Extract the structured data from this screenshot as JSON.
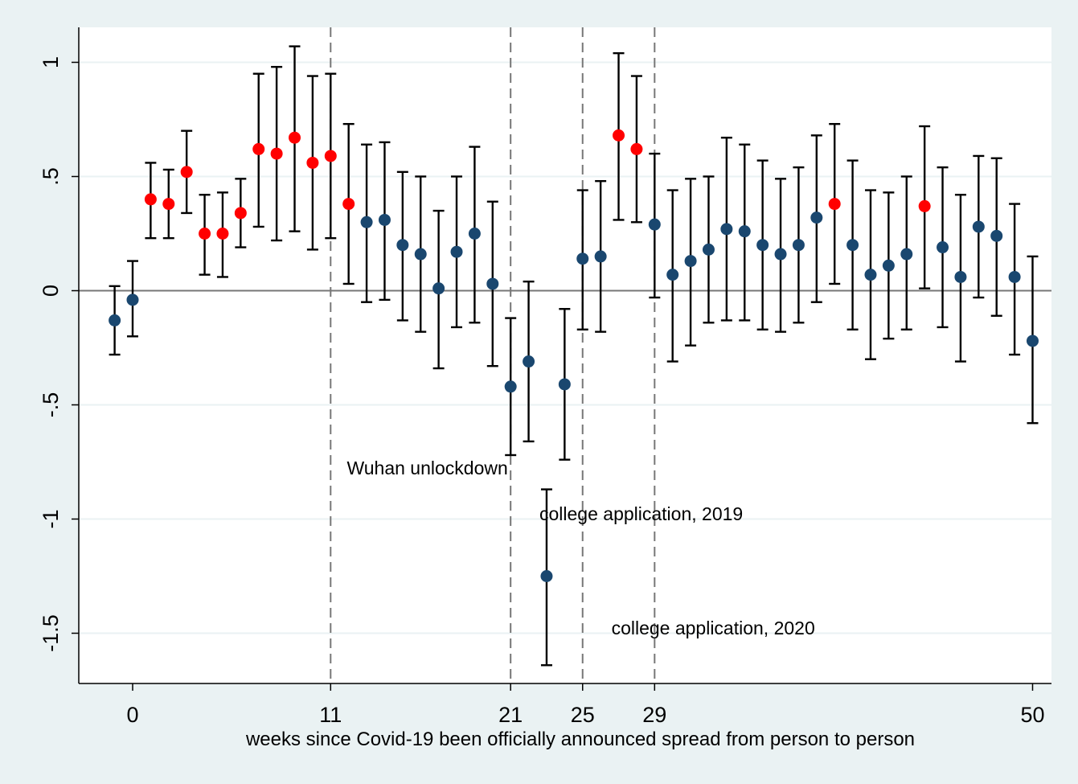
{
  "chart_data": {
    "type": "scatter",
    "xlabel": "weeks since Covid-19 been officially announced spread from person to person",
    "ylabel": "",
    "xlim": [
      -1,
      50
    ],
    "ylim": [
      -1.7,
      1.15
    ],
    "x_ticks": [
      0,
      11,
      21,
      25,
      29,
      50
    ],
    "y_ticks": [
      {
        "value": 1,
        "label": "1"
      },
      {
        "value": 0.5,
        "label": ".5"
      },
      {
        "value": 0,
        "label": "0"
      },
      {
        "value": -0.5,
        "label": "-.5"
      },
      {
        "value": -1,
        "label": "-1"
      },
      {
        "value": -1.5,
        "label": "-1.5"
      }
    ],
    "grid": true,
    "reference_lines": [
      0,
      11,
      21,
      25,
      29
    ],
    "annotations": [
      {
        "text": "Wuhan unlockdown",
        "x": 11.9,
        "y": -0.805
      },
      {
        "text": "college application, 2019",
        "x": 22.6,
        "y": -1.005
      },
      {
        "text": "college application, 2020",
        "x": 26.6,
        "y": -1.505
      }
    ],
    "colors": {
      "significant": "#ff0000",
      "insignificant": "#1a476f",
      "background": "#eaf2f3",
      "plot_background": "#ffffff"
    },
    "series": [
      {
        "x": -1,
        "y": -0.13,
        "low": -0.28,
        "high": 0.02,
        "significant": false
      },
      {
        "x": 0,
        "y": -0.04,
        "low": -0.2,
        "high": 0.13,
        "significant": false
      },
      {
        "x": 1,
        "y": 0.4,
        "low": 0.23,
        "high": 0.56,
        "significant": true
      },
      {
        "x": 2,
        "y": 0.38,
        "low": 0.23,
        "high": 0.53,
        "significant": true
      },
      {
        "x": 3,
        "y": 0.52,
        "low": 0.34,
        "high": 0.7,
        "significant": true
      },
      {
        "x": 4,
        "y": 0.25,
        "low": 0.07,
        "high": 0.42,
        "significant": true
      },
      {
        "x": 5,
        "y": 0.25,
        "low": 0.06,
        "high": 0.43,
        "significant": true
      },
      {
        "x": 6,
        "y": 0.34,
        "low": 0.19,
        "high": 0.49,
        "significant": true
      },
      {
        "x": 7,
        "y": 0.62,
        "low": 0.28,
        "high": 0.95,
        "significant": true
      },
      {
        "x": 8,
        "y": 0.6,
        "low": 0.22,
        "high": 0.98,
        "significant": true
      },
      {
        "x": 9,
        "y": 0.67,
        "low": 0.26,
        "high": 1.07,
        "significant": true
      },
      {
        "x": 10,
        "y": 0.56,
        "low": 0.18,
        "high": 0.94,
        "significant": true
      },
      {
        "x": 11,
        "y": 0.59,
        "low": 0.23,
        "high": 0.95,
        "significant": true
      },
      {
        "x": 12,
        "y": 0.38,
        "low": 0.03,
        "high": 0.73,
        "significant": true
      },
      {
        "x": 13,
        "y": 0.3,
        "low": -0.05,
        "high": 0.64,
        "significant": false
      },
      {
        "x": 14,
        "y": 0.31,
        "low": -0.04,
        "high": 0.65,
        "significant": false
      },
      {
        "x": 15,
        "y": 0.2,
        "low": -0.13,
        "high": 0.52,
        "significant": false
      },
      {
        "x": 16,
        "y": 0.16,
        "low": -0.18,
        "high": 0.5,
        "significant": false
      },
      {
        "x": 17,
        "y": 0.01,
        "low": -0.34,
        "high": 0.35,
        "significant": false
      },
      {
        "x": 18,
        "y": 0.17,
        "low": -0.16,
        "high": 0.5,
        "significant": false
      },
      {
        "x": 19,
        "y": 0.25,
        "low": -0.14,
        "high": 0.63,
        "significant": false
      },
      {
        "x": 20,
        "y": 0.03,
        "low": -0.33,
        "high": 0.39,
        "significant": false
      },
      {
        "x": 21,
        "y": -0.42,
        "low": -0.72,
        "high": -0.12,
        "significant": false
      },
      {
        "x": 22,
        "y": -0.31,
        "low": -0.66,
        "high": 0.04,
        "significant": false
      },
      {
        "x": 23,
        "y": -1.25,
        "low": -1.64,
        "high": -0.87,
        "significant": false
      },
      {
        "x": 24,
        "y": -0.41,
        "low": -0.74,
        "high": -0.08,
        "significant": false
      },
      {
        "x": 25,
        "y": 0.14,
        "low": -0.17,
        "high": 0.44,
        "significant": false
      },
      {
        "x": 26,
        "y": 0.15,
        "low": -0.18,
        "high": 0.48,
        "significant": false
      },
      {
        "x": 27,
        "y": 0.68,
        "low": 0.31,
        "high": 1.04,
        "significant": true
      },
      {
        "x": 28,
        "y": 0.62,
        "low": 0.3,
        "high": 0.94,
        "significant": true
      },
      {
        "x": 29,
        "y": 0.29,
        "low": -0.03,
        "high": 0.6,
        "significant": false
      },
      {
        "x": 30,
        "y": 0.07,
        "low": -0.31,
        "high": 0.44,
        "significant": false
      },
      {
        "x": 31,
        "y": 0.13,
        "low": -0.24,
        "high": 0.49,
        "significant": false
      },
      {
        "x": 32,
        "y": 0.18,
        "low": -0.14,
        "high": 0.5,
        "significant": false
      },
      {
        "x": 33,
        "y": 0.27,
        "low": -0.13,
        "high": 0.67,
        "significant": false
      },
      {
        "x": 34,
        "y": 0.26,
        "low": -0.13,
        "high": 0.64,
        "significant": false
      },
      {
        "x": 35,
        "y": 0.2,
        "low": -0.17,
        "high": 0.57,
        "significant": false
      },
      {
        "x": 36,
        "y": 0.16,
        "low": -0.18,
        "high": 0.49,
        "significant": false
      },
      {
        "x": 37,
        "y": 0.2,
        "low": -0.14,
        "high": 0.54,
        "significant": false
      },
      {
        "x": 38,
        "y": 0.32,
        "low": -0.05,
        "high": 0.68,
        "significant": false
      },
      {
        "x": 39,
        "y": 0.38,
        "low": 0.03,
        "high": 0.73,
        "significant": true
      },
      {
        "x": 40,
        "y": 0.2,
        "low": -0.17,
        "high": 0.57,
        "significant": false
      },
      {
        "x": 41,
        "y": 0.07,
        "low": -0.3,
        "high": 0.44,
        "significant": false
      },
      {
        "x": 42,
        "y": 0.11,
        "low": -0.21,
        "high": 0.43,
        "significant": false
      },
      {
        "x": 43,
        "y": 0.16,
        "low": -0.17,
        "high": 0.5,
        "significant": false
      },
      {
        "x": 44,
        "y": 0.37,
        "low": 0.01,
        "high": 0.72,
        "significant": true
      },
      {
        "x": 45,
        "y": 0.19,
        "low": -0.16,
        "high": 0.54,
        "significant": false
      },
      {
        "x": 46,
        "y": 0.06,
        "low": -0.31,
        "high": 0.42,
        "significant": false
      },
      {
        "x": 47,
        "y": 0.28,
        "low": -0.03,
        "high": 0.59,
        "significant": false
      },
      {
        "x": 48,
        "y": 0.24,
        "low": -0.11,
        "high": 0.58,
        "significant": false
      },
      {
        "x": 49,
        "y": 0.06,
        "low": -0.28,
        "high": 0.38,
        "significant": false
      },
      {
        "x": 50,
        "y": -0.22,
        "low": -0.58,
        "high": 0.15,
        "significant": false
      }
    ]
  }
}
